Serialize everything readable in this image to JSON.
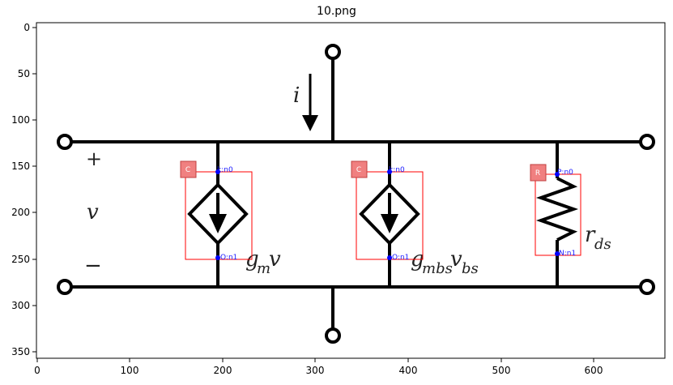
{
  "title": "10.png",
  "axes": {
    "x_ticks": [
      "0",
      "100",
      "200",
      "300",
      "400",
      "500",
      "600"
    ],
    "y_ticks": [
      "0",
      "50",
      "100",
      "150",
      "200",
      "250",
      "300",
      "350"
    ]
  },
  "circuit": {
    "current_label": "i",
    "plus_label": "+",
    "voltage_label": "v",
    "minus_label": "−",
    "source1_label": "g",
    "source1_sub": "m",
    "source1_tail": "v",
    "source2_label": "g",
    "source2_sub": "mbs",
    "source2_tail": "v",
    "source2_tail_sub": "bs",
    "resistor_label": "r",
    "resistor_sub": "ds"
  },
  "annotations": [
    {
      "tag": "C",
      "pin_top": "k:n0",
      "pin_bottom": "O:n1"
    },
    {
      "tag": "C",
      "pin_top": "k:n0",
      "pin_bottom": "O:n1"
    },
    {
      "tag": "R",
      "pin_top": "P:n0",
      "pin_bottom": "N:n1"
    }
  ],
  "colors": {
    "box": "#ff0000",
    "tag_fill": "#f08080",
    "pin": "#0000ff",
    "wire": "#000000"
  }
}
